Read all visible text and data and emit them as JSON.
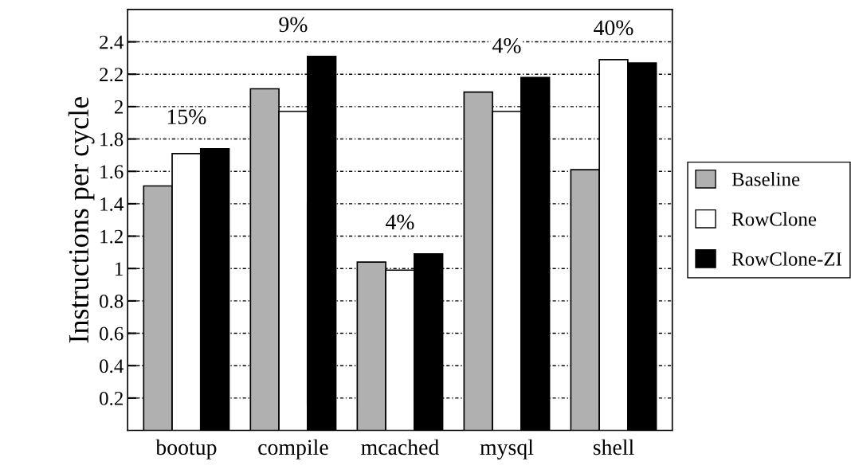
{
  "chart_data": {
    "type": "bar",
    "ylabel": "Instructions per cycle",
    "categories": [
      "bootup",
      "compile",
      "mcached",
      "mysql",
      "shell"
    ],
    "series": [
      {
        "name": "Baseline",
        "color": "#b0b0b0",
        "values": [
          1.51,
          2.11,
          1.04,
          2.09,
          1.61
        ]
      },
      {
        "name": "RowClone",
        "color": "#ffffff",
        "values": [
          1.71,
          1.97,
          0.99,
          1.97,
          2.29
        ]
      },
      {
        "name": "RowClone-ZI",
        "color": "#000000",
        "values": [
          1.74,
          2.31,
          1.09,
          2.18,
          2.27
        ]
      }
    ],
    "ylim": [
      0,
      2.6
    ],
    "yticks": [
      0.2,
      0.4,
      0.6,
      0.8,
      1,
      1.2,
      1.4,
      1.6,
      1.8,
      2,
      2.2,
      2.4
    ],
    "grid": "y",
    "legend": "right",
    "annotations": [
      "15%",
      "9%",
      "4%",
      "4%",
      "40%"
    ]
  }
}
